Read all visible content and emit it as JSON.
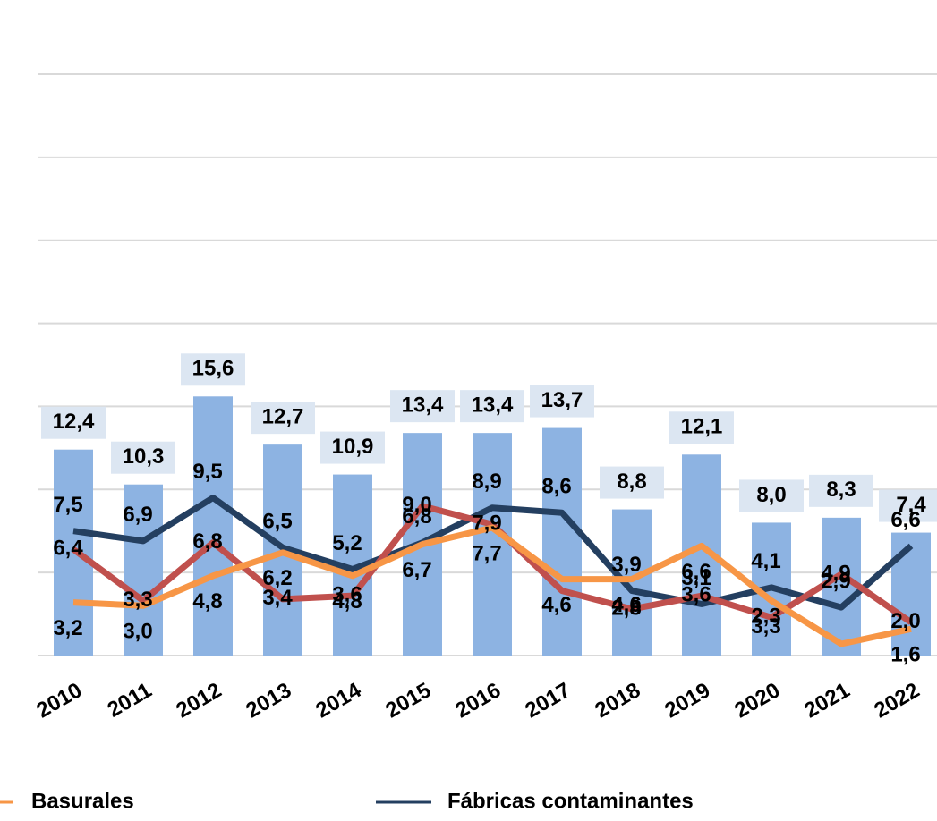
{
  "chart_data": {
    "type": "bar_line",
    "categories": [
      "2010",
      "2011",
      "2012",
      "2013",
      "2014",
      "2015",
      "2016",
      "2017",
      "2018",
      "2019",
      "2020",
      "2021",
      "2022"
    ],
    "bars": {
      "color": "#8db3e2",
      "values": [
        12.4,
        10.3,
        15.6,
        12.7,
        10.9,
        13.4,
        13.4,
        13.7,
        8.8,
        12.1,
        8.0,
        8.3,
        7.4
      ],
      "value_labels": [
        "12,4",
        "10,3",
        "15,6",
        "12,7",
        "10,9",
        "13,4",
        "13,4",
        "13,7",
        "8,8",
        "12,1",
        "8,0",
        "8,3",
        "7,4"
      ]
    },
    "series": [
      {
        "name": "Fábricas contaminantes",
        "color": "#243f60",
        "values": [
          7.5,
          6.9,
          9.5,
          6.5,
          5.2,
          6.8,
          8.9,
          8.6,
          3.9,
          3.1,
          4.1,
          2.9,
          6.6
        ],
        "value_labels": [
          "7,5",
          "6,9",
          "9,5",
          "6,5",
          "5,2",
          "6,8",
          "8,9",
          "8,6",
          "3,9",
          "3,1",
          "4,1",
          "2,9",
          "6,6"
        ]
      },
      {
        "color": "#c0504d",
        "values": [
          6.4,
          3.3,
          6.8,
          3.4,
          3.6,
          9.0,
          7.9,
          3.9,
          2.8,
          3.6,
          2.3,
          4.9,
          2.0
        ],
        "value_labels": [
          "6,4",
          "3,3",
          "6,8",
          "3,4",
          "3,6",
          "9,0",
          "7,9",
          null,
          "2,8",
          "3,6",
          "2,3",
          "4,9",
          "2,0"
        ]
      },
      {
        "name": "Basurales",
        "color": "#f79646",
        "values": [
          3.2,
          3.0,
          4.8,
          6.2,
          4.8,
          6.7,
          7.7,
          4.6,
          4.6,
          6.6,
          3.3,
          0.7,
          1.6
        ],
        "value_labels": [
          "3,2",
          "3,0",
          "4,8",
          "6,2",
          "4,8",
          "6,7",
          "7,7",
          "4,6",
          "4,6",
          "6,6",
          "3,3",
          null,
          "1,6"
        ]
      }
    ],
    "ylim": [
      0,
      35
    ],
    "yticks": [
      0,
      5,
      10,
      15,
      20,
      25,
      30,
      35
    ],
    "grid": true
  }
}
